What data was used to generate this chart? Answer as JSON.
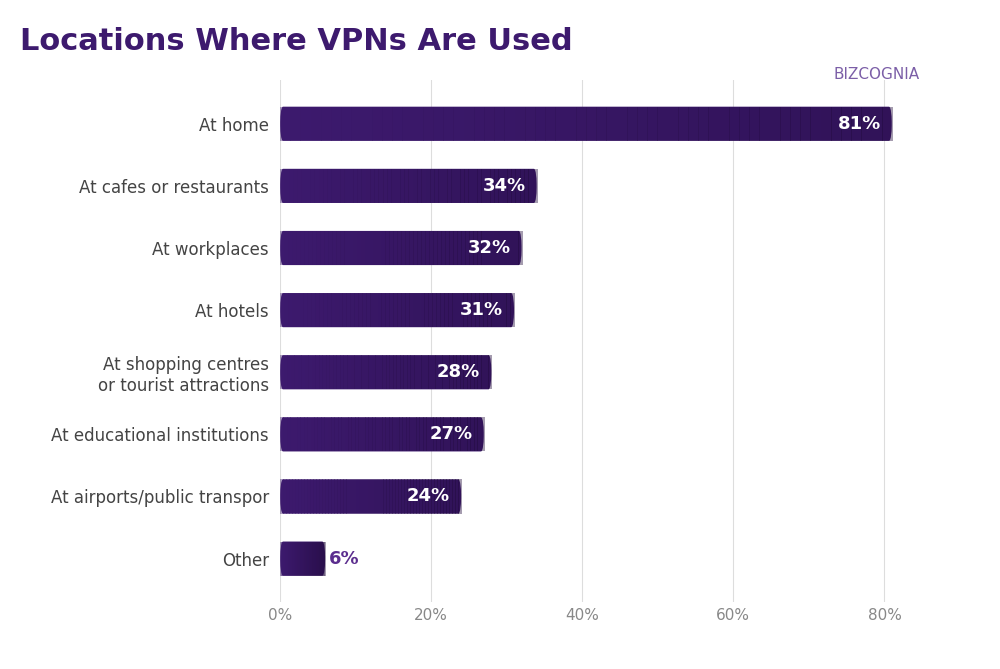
{
  "title": "Locations Where VPNs Are Used",
  "title_color": "#3d1a6e",
  "title_fontsize": 22,
  "categories": [
    "At home",
    "At cafes or restaurants",
    "At workplaces",
    "At hotels",
    "At shopping centres\nor tourist attractions",
    "At educational institutions",
    "At airports/public transpor",
    "Other"
  ],
  "values": [
    81,
    34,
    32,
    31,
    28,
    27,
    24,
    6
  ],
  "bar_color_start": "#5b2d8e",
  "bar_color_end": "#2b1050",
  "bar_height": 0.55,
  "label_color": "#ffffff",
  "label_color_other": "#5b2d8e",
  "label_fontsize": 13,
  "category_fontsize": 12,
  "category_color": "#444444",
  "xlim": [
    0,
    90
  ],
  "xticks": [
    0,
    20,
    40,
    60,
    80
  ],
  "xticklabels": [
    "0%",
    "20%",
    "40%",
    "60%",
    "80%"
  ],
  "background_color": "#ffffff",
  "grid_color": "#dddddd",
  "footer_color": "#2b1050",
  "logo_text": "BIZCOGNIA",
  "logo_color": "#7b5ea7"
}
